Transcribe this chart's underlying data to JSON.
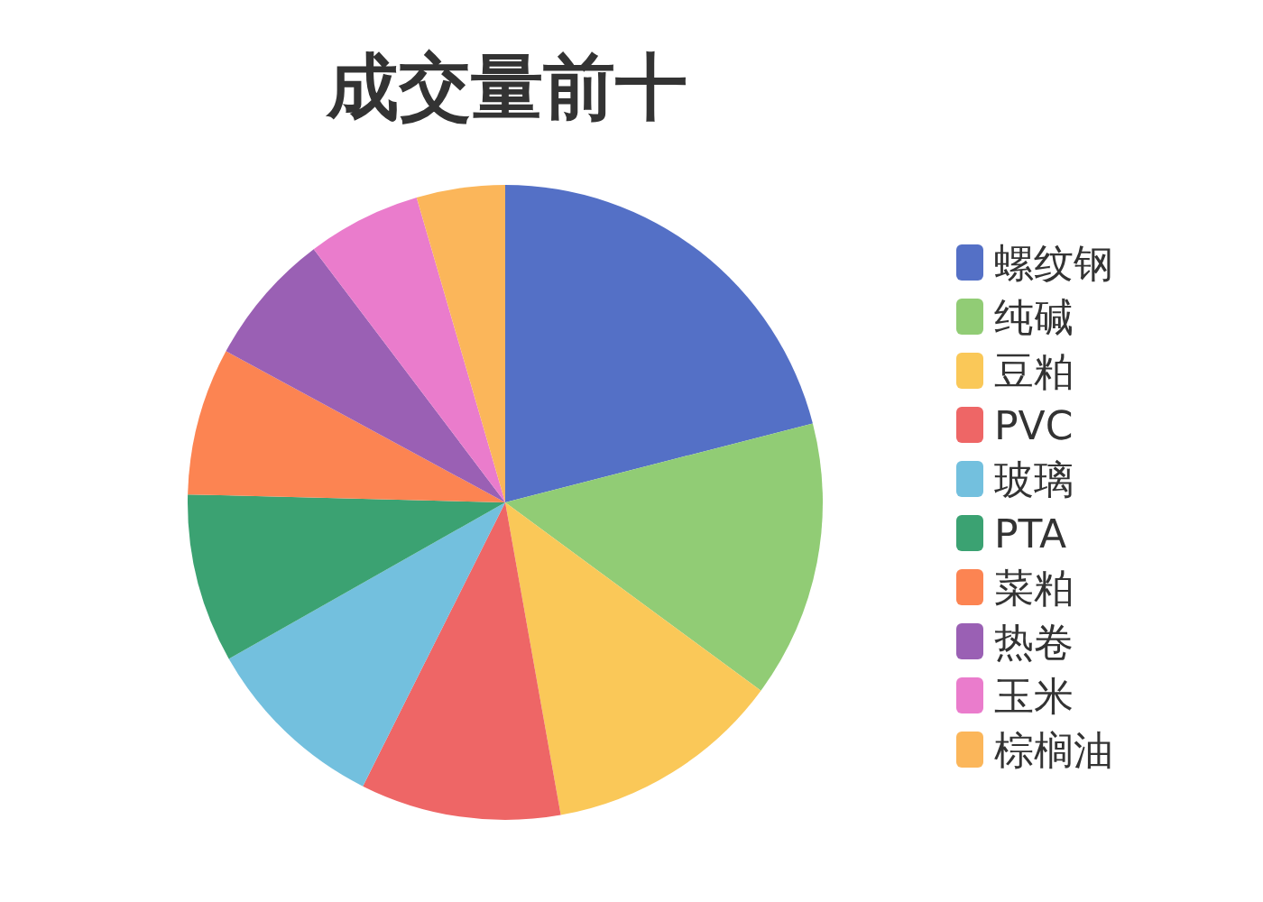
{
  "chart_data": {
    "type": "pie",
    "title": "成交量前十",
    "categories": [
      "螺纹钢",
      "纯碱",
      "豆粕",
      "PVC",
      "玻璃",
      "PTA",
      "菜粕",
      "热卷",
      "玉米",
      "棕榈油"
    ],
    "values": [
      21.0,
      14.1,
      12.1,
      10.2,
      9.4,
      8.6,
      7.5,
      6.8,
      5.8,
      4.5
    ],
    "colors": [
      "#5470c6",
      "#91cc75",
      "#fac858",
      "#ee6666",
      "#73c0de",
      "#3ba272",
      "#fc8452",
      "#9a60b4",
      "#ea7ccc",
      "#fbb65a"
    ],
    "legend": "right"
  }
}
